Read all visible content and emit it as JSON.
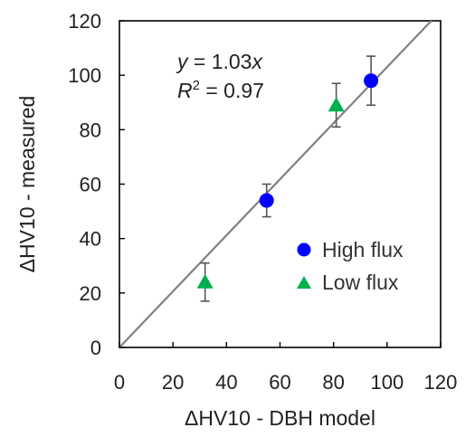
{
  "chart_data": {
    "type": "scatter",
    "xlabel": "ΔHV10 - DBH model",
    "ylabel": "ΔHV10 - measured",
    "xlim": [
      0,
      120
    ],
    "ylim": [
      0,
      120
    ],
    "xticks": [
      0,
      20,
      40,
      60,
      80,
      100,
      120
    ],
    "yticks": [
      0,
      20,
      40,
      60,
      80,
      100,
      120
    ],
    "grid": false,
    "legend_position": "lower-right",
    "series": [
      {
        "name": "High flux",
        "marker": "circle",
        "color": "#0000ff",
        "points": [
          {
            "x": 55,
            "y": 54,
            "err_low": 48,
            "err_high": 60
          },
          {
            "x": 94,
            "y": 98,
            "err_low": 89,
            "err_high": 107
          }
        ]
      },
      {
        "name": "Low flux",
        "marker": "triangle",
        "color": "#00b050",
        "points": [
          {
            "x": 32,
            "y": 24,
            "err_low": 17,
            "err_high": 31
          },
          {
            "x": 81,
            "y": 89,
            "err_low": 81,
            "err_high": 97
          }
        ]
      }
    ],
    "fit_line": {
      "slope": 1.03,
      "color": "#808080"
    },
    "annotations": {
      "equation_y": "y",
      "equation_mid": " = 1.03",
      "equation_x": "x",
      "r2_R": "R",
      "r2_sup": "2",
      "r2_value": " = 0.97"
    }
  }
}
